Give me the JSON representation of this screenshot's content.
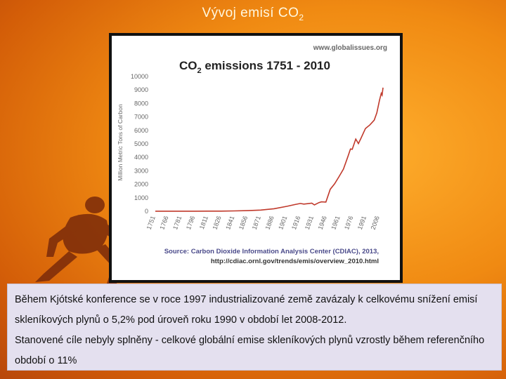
{
  "slide": {
    "title_main": "Vývoj emisí CO",
    "title_sub": "2",
    "paragraph_1": "Během Kjótské konference se v roce 1997 industrializované země zavázaly k celkovému snížení emisí skleníkových plynů o 5,2% pod úroveň roku 1990 v období let 2008-2012.",
    "paragraph_2": "Stanovené cíle nebyly splněny - celkové globální emise skleníkových plynů vzrostly během referenčního období o 11%"
  },
  "colors": {
    "line": "#c0392b",
    "axis_text": "#666666",
    "title_text": "#222222"
  },
  "chart_data": {
    "type": "line",
    "title_prefix": "CO",
    "title_sub": "2",
    "title_suffix": " emissions 1751 - 2010",
    "watermark": "www.globalissues.org",
    "ylabel": "Million Metric Tons of Carbon",
    "xlabel": "",
    "ylim": [
      0,
      10000
    ],
    "xlim": [
      1751,
      2010
    ],
    "yticks": [
      "0",
      "1000",
      "2000",
      "3000",
      "4000",
      "5000",
      "6000",
      "7000",
      "8000",
      "9000",
      "10000"
    ],
    "xticks": [
      "1751",
      "1766",
      "1781",
      "1796",
      "1811",
      "1826",
      "1841",
      "1856",
      "1871",
      "1886",
      "1901",
      "1916",
      "1931",
      "1946",
      "1961",
      "1976",
      "1991",
      "2006"
    ],
    "source_line_1": "Source: Carbon Dioxide Information Analysis Center (CDIAC), 2013,",
    "source_line_2": "http://cdiac.ornl.gov/trends/emis/overview_2010.html",
    "series": [
      {
        "x": [
          1751,
          1766,
          1781,
          1796,
          1811,
          1826,
          1841,
          1856,
          1871,
          1886,
          1901,
          1910,
          1916,
          1920,
          1929,
          1932,
          1937,
          1940,
          1945,
          1950,
          1955,
          1960,
          1965,
          1970,
          1973,
          1975,
          1979,
          1982,
          1985,
          1990,
          1995,
          2000,
          2003,
          2006,
          2008,
          2009,
          2010
        ],
        "y": [
          3,
          3,
          4,
          5,
          8,
          13,
          25,
          45,
          90,
          190,
          370,
          500,
          580,
          530,
          600,
          470,
          640,
          700,
          680,
          1630,
          2040,
          2580,
          3130,
          4050,
          4620,
          4600,
          5360,
          5020,
          5420,
          6140,
          6400,
          6760,
          7300,
          8240,
          8750,
          8620,
          9170
        ]
      }
    ]
  }
}
